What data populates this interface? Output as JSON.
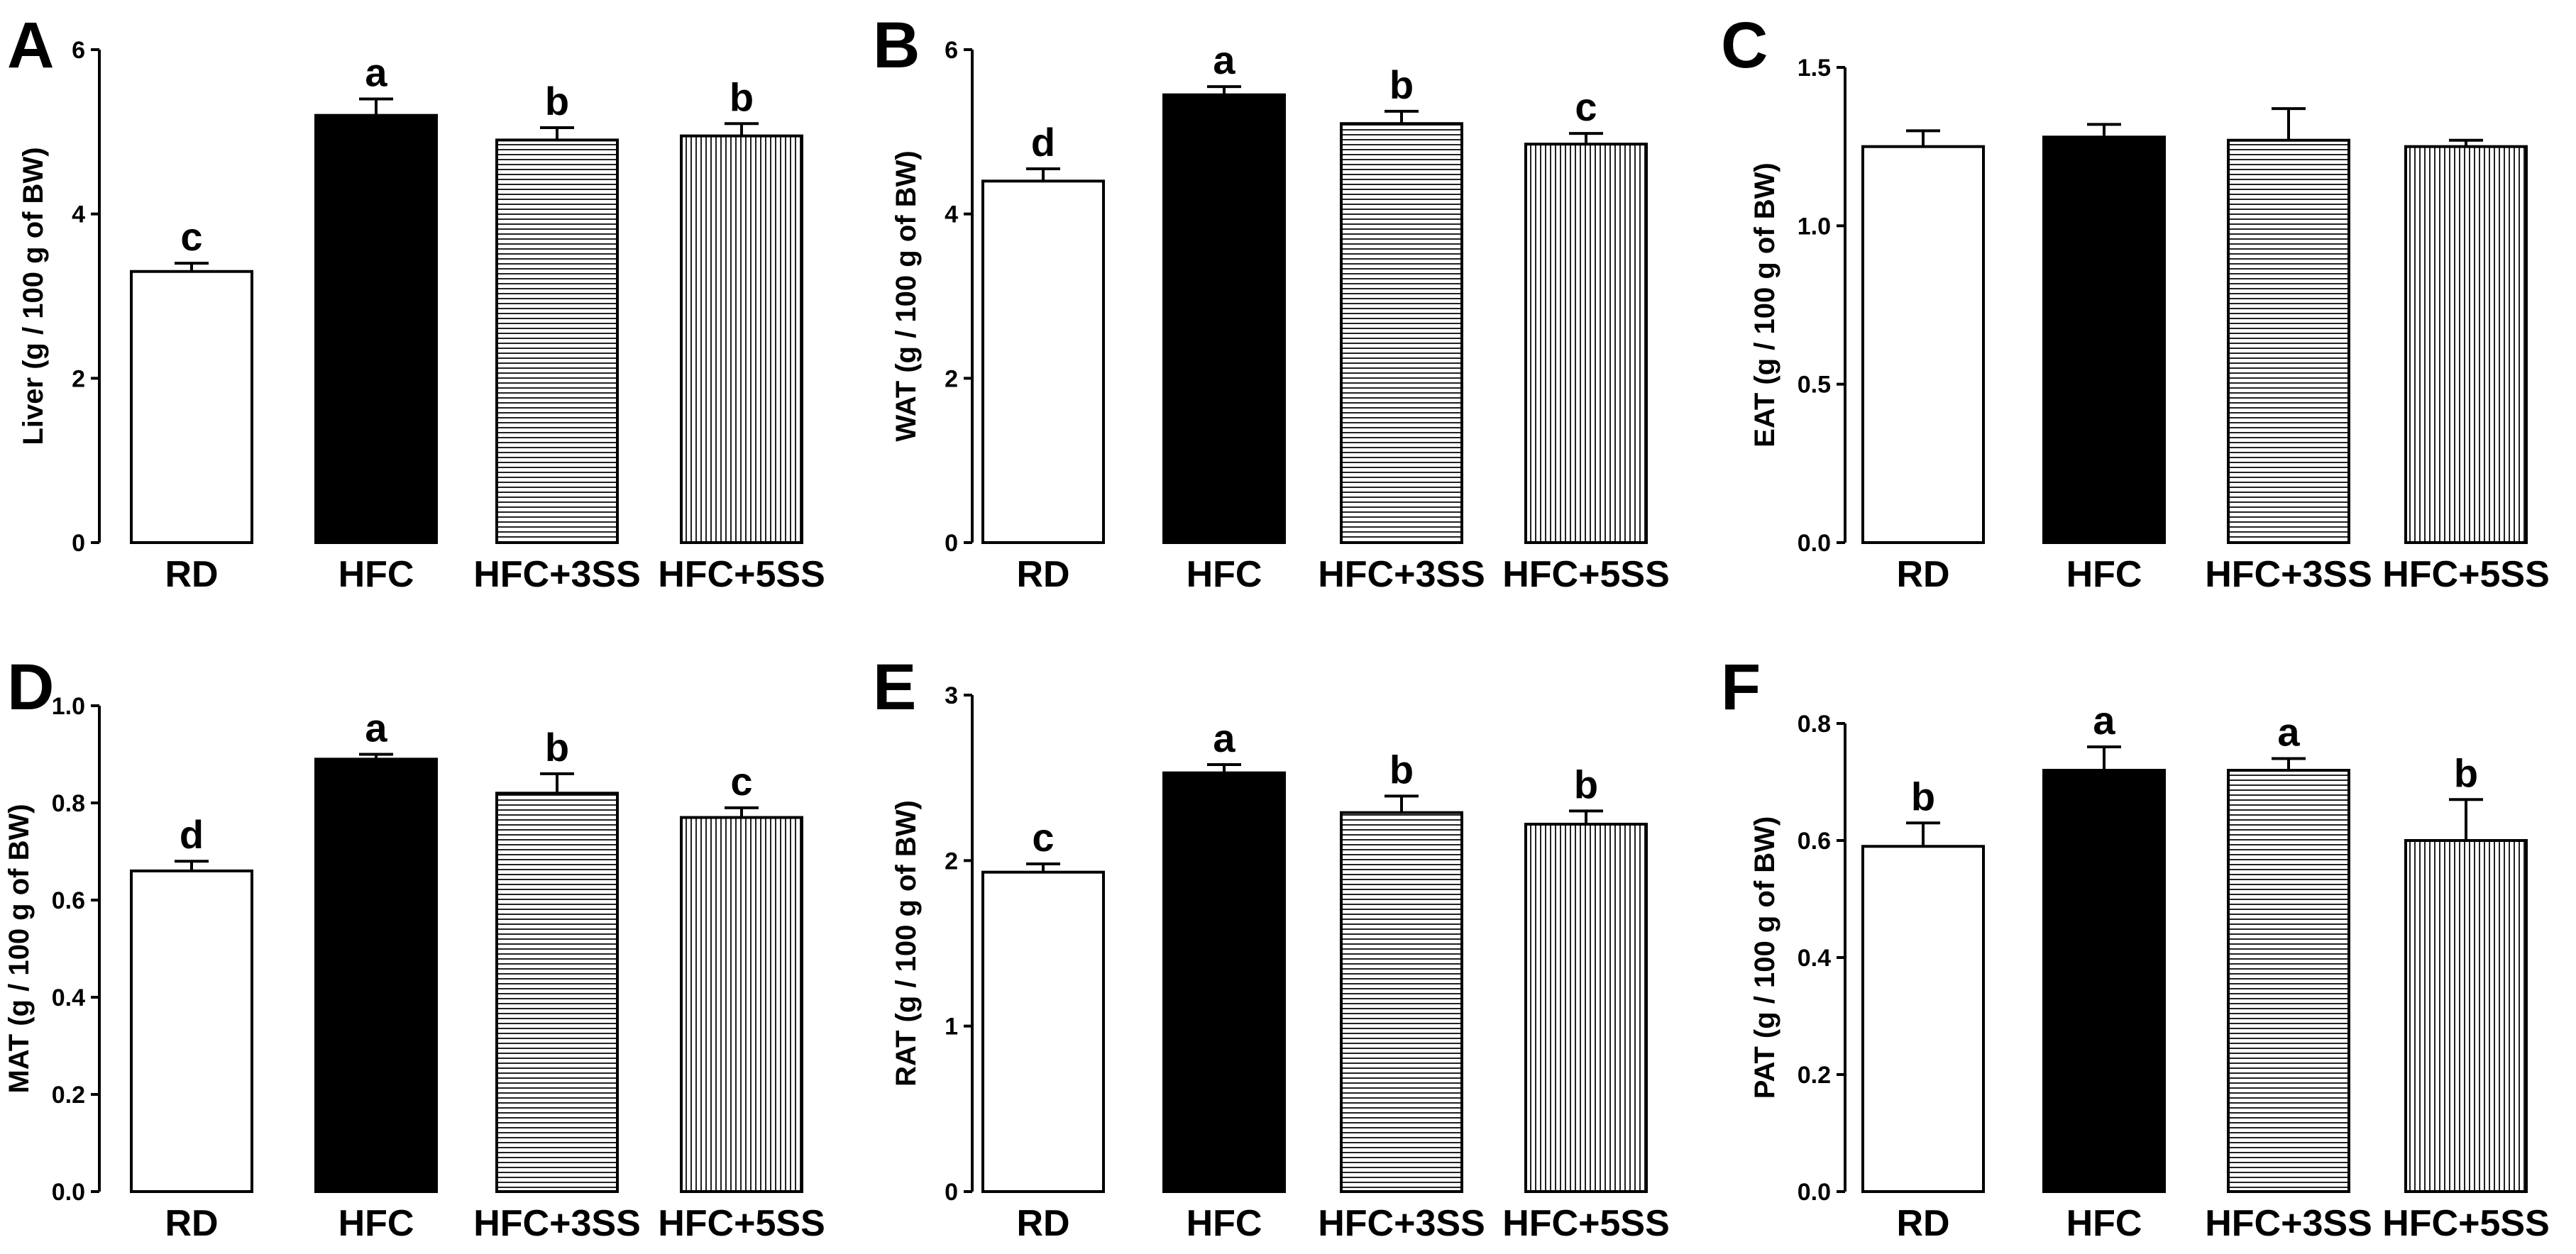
{
  "figure": {
    "panels": [
      "A",
      "B",
      "C",
      "D",
      "E",
      "F"
    ]
  },
  "chart_data": [
    {
      "panel": "A",
      "type": "bar",
      "title": "",
      "xlabel": "",
      "ylabel": "Liver (g / 100 g of BW)",
      "categories": [
        "RD",
        "HFC",
        "HFC+3SS",
        "HFC+5SS"
      ],
      "values": [
        3.3,
        5.2,
        4.9,
        4.95
      ],
      "errors": [
        0.1,
        0.2,
        0.15,
        0.15
      ],
      "sig": [
        "c",
        "a",
        "b",
        "b"
      ],
      "ylim": [
        0,
        6
      ],
      "yticks": [
        "0",
        "2",
        "4",
        "6"
      ],
      "ytick_values": [
        0,
        2,
        4,
        6
      ],
      "fills": [
        "white",
        "black",
        "horizontal-stripes",
        "vertical-stripes"
      ]
    },
    {
      "panel": "B",
      "type": "bar",
      "title": "",
      "xlabel": "",
      "ylabel": "WAT (g / 100 g of BW)",
      "categories": [
        "RD",
        "HFC",
        "HFC+3SS",
        "HFC+5SS"
      ],
      "values": [
        4.4,
        5.45,
        5.1,
        4.85
      ],
      "errors": [
        0.15,
        0.1,
        0.15,
        0.13
      ],
      "sig": [
        "d",
        "a",
        "b",
        "c"
      ],
      "ylim": [
        0,
        6
      ],
      "yticks": [
        "0",
        "2",
        "4",
        "6"
      ],
      "ytick_values": [
        0,
        2,
        4,
        6
      ],
      "fills": [
        "white",
        "black",
        "horizontal-stripes",
        "vertical-stripes"
      ]
    },
    {
      "panel": "C",
      "type": "bar",
      "title": "",
      "xlabel": "",
      "ylabel": "EAT (g / 100 g of BW)",
      "categories": [
        "RD",
        "HFC",
        "HFC+3SS",
        "HFC+5SS"
      ],
      "values": [
        1.25,
        1.28,
        1.27,
        1.25
      ],
      "errors": [
        0.05,
        0.04,
        0.1,
        0.02
      ],
      "sig": [
        "",
        "",
        "",
        ""
      ],
      "ylim": [
        0,
        1.5
      ],
      "yticks": [
        "0.0",
        "0.5",
        "1.0",
        "1.5"
      ],
      "ytick_values": [
        0,
        0.5,
        1.0,
        1.5
      ],
      "fills": [
        "white",
        "black",
        "horizontal-stripes",
        "vertical-stripes"
      ]
    },
    {
      "panel": "D",
      "type": "bar",
      "title": "",
      "xlabel": "",
      "ylabel": "MAT (g / 100 g of BW)",
      "categories": [
        "RD",
        "HFC",
        "HFC+3SS",
        "HFC+5SS"
      ],
      "values": [
        0.66,
        0.89,
        0.82,
        0.77
      ],
      "errors": [
        0.02,
        0.01,
        0.04,
        0.02
      ],
      "sig": [
        "d",
        "a",
        "b",
        "c"
      ],
      "ylim": [
        0,
        1.0
      ],
      "yticks": [
        "0.0",
        "0.2",
        "0.4",
        "0.6",
        "0.8",
        "1.0"
      ],
      "ytick_values": [
        0,
        0.2,
        0.4,
        0.6,
        0.8,
        1.0
      ],
      "fills": [
        "white",
        "black",
        "horizontal-stripes",
        "vertical-stripes"
      ]
    },
    {
      "panel": "E",
      "type": "bar",
      "title": "",
      "xlabel": "",
      "ylabel": "RAT (g / 100 g of BW)",
      "categories": [
        "RD",
        "HFC",
        "HFC+3SS",
        "HFC+5SS"
      ],
      "values": [
        1.93,
        2.53,
        2.29,
        2.22
      ],
      "errors": [
        0.05,
        0.05,
        0.1,
        0.08
      ],
      "sig": [
        "c",
        "a",
        "b",
        "b"
      ],
      "ylim": [
        0,
        3
      ],
      "yticks": [
        "0",
        "1",
        "2",
        "3"
      ],
      "ytick_values": [
        0,
        1,
        2,
        3
      ],
      "fills": [
        "white",
        "black",
        "horizontal-stripes",
        "vertical-stripes"
      ]
    },
    {
      "panel": "F",
      "type": "bar",
      "title": "",
      "xlabel": "",
      "ylabel": "PAT (g / 100 g of BW)",
      "categories": [
        "RD",
        "HFC",
        "HFC+3SS",
        "HFC+5SS"
      ],
      "values": [
        0.59,
        0.72,
        0.72,
        0.6
      ],
      "errors": [
        0.04,
        0.04,
        0.02,
        0.07
      ],
      "sig": [
        "b",
        "a",
        "a",
        "b"
      ],
      "ylim": [
        0,
        0.8
      ],
      "yticks": [
        "0.0",
        "0.2",
        "0.4",
        "0.6",
        "0.8"
      ],
      "ytick_values": [
        0,
        0.2,
        0.4,
        0.6,
        0.8
      ],
      "fills": [
        "white",
        "black",
        "horizontal-stripes",
        "vertical-stripes"
      ]
    }
  ]
}
